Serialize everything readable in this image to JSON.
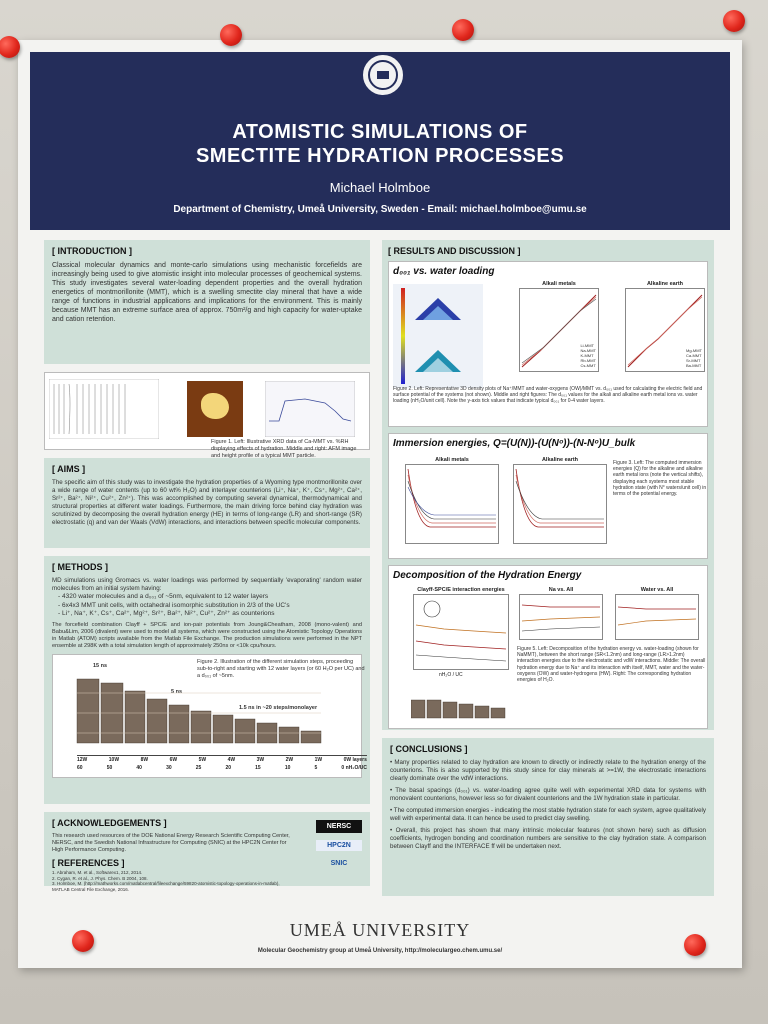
{
  "header": {
    "title_line1": "ATOMISTIC SIMULATIONS OF",
    "title_line2": "SMECTITE HYDRATION PROCESSES",
    "author": "Michael Holmboe",
    "department": "Department of Chemistry, Umeå University, Sweden - Email: michael.holmboe@umu.se"
  },
  "introduction": {
    "heading": "[ INTRODUCTION ]",
    "text": "Classical molecular dynamics and monte-carlo simulations using mechanistic forcefields are increasingly being used to give atomistic insight into molecular processes of geochemical systems. This study investigates several water-loading dependent properties and the overall hydration energetics of montmorillonite (MMT), which is a swelling smectite clay mineral that have a wide range of functions in industrial applications and implications for the environment. This is mainly because MMT has an extreme surface area of approx. 750m²/g and high capacity for water-uptake and cation retention.",
    "figure_caption": "Figure 1. Left: Illustrative XRD data of Ca-MMT vs. %RH displaying effects of hydration. Middle and right: AFM image and height profile of a typical MMT particle."
  },
  "aims": {
    "heading": "[ AIMS ]",
    "text": "The specific aim of this study was to investigate the hydration properties of a Wyoming type montmorillonite over a wide range of water contents (up to 60 wt% H₂O) and interlayer counterions (Li⁺, Na⁺, K⁺, Cs⁺, Mg²⁺, Ca²⁺, Sr²⁺, Ba²⁺, Ni²⁺, Cu²⁺, Zn²⁺). This was accomplished by computing several dynamical, thermodynamical and structural properties at different water loadings. Furthermore, the main driving force behind clay hydration was scrutinized by decomposing the overall hydration energy (HE) in terms of long-range (LR) and short-range (SR) electrostatic (q) and van der Waals (VdW) interactions, and interactions between specific molecular components."
  },
  "methods": {
    "heading": "[ METHODS ]",
    "text": "MD simulations using Gromacs vs. water loadings was performed by sequentially 'evaporating' random water molecules from an initial system having:",
    "bullets": [
      "- 4320 water molecules and a d₀₀₁ of ~5nm, equivalent to 12 water layers",
      "- 6x4x3 MMT unit cells, with octahedral isomorphic substitution in 2/3 of the UC's",
      "- Li⁺, Na⁺, K⁺, Cs⁺, Ca²⁺, Mg²⁺, Sr²⁺, Ba²⁺, Ni²⁺, Cu²⁺, Zn²⁺ as counterions"
    ],
    "text2": "The forcefield combination Clayff + SPC/E and ion-pair potentials from Joung&Cheatham, 2008 (mono-valent) and Babu&Lim, 2006 (divalent) were used to model all systems, which were constructed using the Atomistic Topology Operations in Matlab (ATOM) scripts available from the Matlab File Exchange. The production simulations were performed in the NPT ensemble at 298K with a total simulation length of approximately 250ns or <10k cpu/hours.",
    "figure_caption": "Figure 2. Illustration of the different simulation steps, proceeding sub-to-right and starting with 12 water layers (or 60 H₂O per UC) and a d₀₀₁ of ~5nm.",
    "label_15ns": "15 ns",
    "label_5ns": "5 ns",
    "label_steps": "1.5 ns in ~20 steps/monolayer",
    "axis_row1": [
      "12W",
      "10W",
      "8W",
      "6W",
      "5W",
      "4W",
      "3W",
      "2W",
      "1W",
      "0W layers"
    ],
    "axis_row2": [
      "60",
      "50",
      "40",
      "30",
      "25",
      "20",
      "15",
      "10",
      "5",
      "0 nH₂O/UC"
    ]
  },
  "acknowledgements": {
    "heading": "[ ACKNOWLEDGEMENTS ]",
    "text": "This research used resources of the DOE National Energy Research Scientific Computing Center, NERSC, and the Swedish National Infrastructure for Computing (SNIC) at the HPC2N Center for High Performance Computing.",
    "logos": [
      "NERSC",
      "HPC2N",
      "SNIC"
    ]
  },
  "references": {
    "heading": "[ REFERENCES ]",
    "items": [
      "1. Abraham, M. et al., Softwarex1, 212, 2014.",
      "2. Cygan, R. et al., J. Phys. Chem. B 2004, 108.",
      "3. Holmboe, M. (http://mathworks.com/matlabcentral/fileexchange/59820-atomistic-topology-operations-in-matlab), MATLAB Central File Exchange, 2016."
    ]
  },
  "results": {
    "heading": "[ RESULTS AND DISCUSSION ]",
    "panel1_title": "d₀₀₁ vs. water loading",
    "plot_alkali_title": "Alkali metals",
    "plot_earth_title": "Alkaline earth",
    "legend_alkali": [
      "Li-MMT",
      "Na-MMT",
      "K-MMT",
      "Rb-MMT",
      "Cs-MMT"
    ],
    "legend_earth": [
      "Mg-MMT",
      "Ca-MMT",
      "Sr-MMT",
      "Ba-MMT"
    ],
    "figure2_caption": "Figure 2. Left: Representative 3D density plots of Na⁺/MMT and water-oxygens (OW)/MMT vs. d₀₀₁ used for calculating the electric field and surface potential of the systems (not shown). Middle and right figures: The d₀₀₁ values for the alkali and alkaline earth metal ions vs. water loading (nH₂O/unit cell). Note the y-axis tick values that indicate typical d₀₀₁ for 0-4 water layers.",
    "panel2_title": "Immersion energies, Q=(U(N))-(U(Nᵒ))-(N-Nᵒ)U_bulk",
    "figure3_caption": "Figure 3. Left: The computed immersion energies (Q) for the alkaline and alkaline earth metal ions (note the vertical shifts), displaying each systems most stable hydration state (with N° waters/unit cell) in terms of the potential energy.",
    "panel3_title": "Decomposition of the Hydration Energy",
    "plot_decomp_title": "Clayff-SPC/E interaction energies",
    "plot_na_title": "Na vs. All",
    "plot_water_title": "Water vs. All",
    "figure5_caption": "Figure 5. Left: Decomposition of the hydration energy vs. water-loading (shown for NaMMT), between the short range (SR<1.2nm) and long-range (LR>1.2nm) interaction energies due to the electrostatic and vdW interactions. Middle: The overall hydration energy due to Na⁺ and its interaction with itself, MMT, water and the water-oxygens (OW) and water-hydrogens (HW). Right: The corresponding hydration energies of H₂O.",
    "axis_x_label": "nH₂O / UC"
  },
  "conclusions": {
    "heading": "[ CONCLUSIONS ]",
    "bullets": [
      "• Many properties related to clay hydration are known to directly or indirectly relate to the hydration energy of the counterions. This is also supported by this study since for clay minerals at >=1W, the electrostatic interactions clearly dominate over the vdW interactions.",
      "• The basal spacings (d₀₀₁) vs. water-loading agree quite well with experimental XRD data for systems with monovalent counterions, however less so for divalent counterions and the 1W hydration state in particular.",
      "• The computed immersion energies - indicating the most stable hydration state for each system, agree qualitatively well with experimental data. It can hence be used to predict clay swelling.",
      "• Overall, this project has shown that many intrinsic molecular features (not shown here) such as diffusion coefficients, hydrogen bonding and coordination numbers are sensitive to the clay hydration state. A comparison between Clayff and the INTERFACE ff will be undertaken next."
    ]
  },
  "footer": {
    "university": "UMEÅ UNIVERSITY",
    "url": "Molecular Geochemistry group at Umeå University, http://moleculargeo.chem.umu.se/"
  },
  "colors": {
    "banner": "#242d5a",
    "section_bg": "#cfe0d8",
    "pin": "#e0261c"
  }
}
